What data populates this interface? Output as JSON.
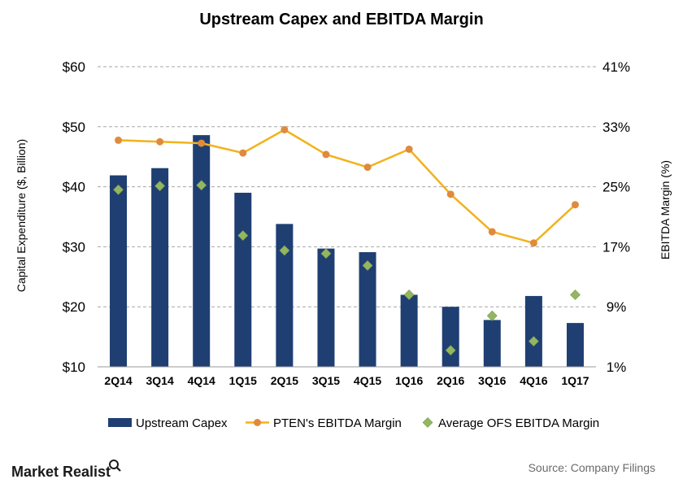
{
  "chart_data": {
    "type": "bar",
    "title": "Upstream  Capex and EBITDA Margin",
    "categories": [
      "2Q14",
      "3Q14",
      "4Q14",
      "1Q15",
      "2Q15",
      "3Q15",
      "4Q15",
      "1Q16",
      "2Q16",
      "3Q16",
      "4Q16",
      "1Q17"
    ],
    "ylabel": "Capital Expenditure ($, Billion)",
    "y2label": "EBITDA Margin (%)",
    "ylim": [
      10,
      60
    ],
    "y2lim": [
      1,
      41
    ],
    "yticks": [
      "$10",
      "$20",
      "$30",
      "$40",
      "$50",
      "$60"
    ],
    "y2ticks": [
      "1%",
      "9%",
      "17%",
      "25%",
      "33%",
      "41%"
    ],
    "grid": true,
    "legend_position": "bottom",
    "series": [
      {
        "name": "Upstream Capex",
        "type": "bar",
        "axis": "left",
        "color": "#1f3f73",
        "values": [
          41.9,
          43.1,
          48.6,
          39.0,
          33.8,
          29.7,
          29.1,
          22.0,
          20.0,
          17.8,
          21.8,
          17.3
        ]
      },
      {
        "name": "PTEN's EBITDA Margin",
        "type": "line",
        "axis": "right",
        "color": "#f2b21c",
        "marker_color": "#e08a3c",
        "values": [
          31.2,
          31.0,
          30.8,
          29.5,
          32.6,
          29.3,
          27.6,
          30.0,
          24.0,
          19.0,
          17.5,
          22.6
        ]
      },
      {
        "name": "Average OFS EBITDA Margin",
        "type": "scatter",
        "axis": "right",
        "color": "#93b760",
        "values": [
          24.6,
          25.1,
          25.2,
          18.5,
          16.5,
          16.1,
          14.5,
          10.6,
          3.2,
          7.8,
          4.4,
          10.6
        ]
      }
    ]
  },
  "branding": {
    "logo_text": "Market Realist",
    "source_text": "Source:  Company Filings"
  }
}
